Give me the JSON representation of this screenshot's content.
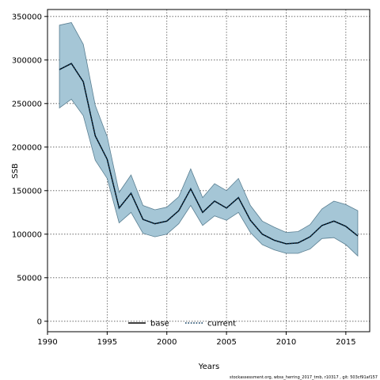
{
  "chart_data": {
    "type": "line",
    "title": "",
    "xlabel": "Years",
    "ylabel": "SSB",
    "xlim": [
      1990,
      2017
    ],
    "ylim": [
      -12000,
      358000
    ],
    "x_ticks": [
      1990,
      1995,
      2000,
      2005,
      2010,
      2015
    ],
    "y_ticks": [
      0,
      50000,
      100000,
      150000,
      200000,
      250000,
      300000,
      350000
    ],
    "grid": true,
    "legend_placement": "bottom-center",
    "x": [
      1991,
      1992,
      1993,
      1994,
      1995,
      1996,
      1997,
      1998,
      1999,
      2000,
      2001,
      2002,
      2003,
      2004,
      2005,
      2006,
      2007,
      2008,
      2009,
      2010,
      2011,
      2012,
      2013,
      2014,
      2015,
      2016
    ],
    "series": [
      {
        "name": "base",
        "style": "solid",
        "color": "#000000",
        "values": [
          289000,
          296000,
          275000,
          213000,
          186000,
          130000,
          147000,
          117000,
          112000,
          115000,
          127000,
          152000,
          125000,
          138000,
          130000,
          142000,
          116000,
          100000,
          93000,
          89000,
          90000,
          97000,
          110000,
          115000,
          109000,
          98000
        ]
      },
      {
        "name": "current",
        "style": "dotted",
        "color": "#0b3a5e",
        "values": [
          289000,
          296000,
          275000,
          213000,
          186000,
          130000,
          147000,
          117000,
          112000,
          115000,
          127000,
          152000,
          125000,
          138000,
          130000,
          142000,
          116000,
          100000,
          93000,
          89000,
          90000,
          97000,
          110000,
          115000,
          109000,
          98000
        ]
      }
    ],
    "band": {
      "color": "#a5c6d6",
      "edge_color": "#5a7f92",
      "lower": [
        245000,
        255000,
        236000,
        185000,
        164000,
        113000,
        125000,
        101000,
        97000,
        100000,
        112000,
        133000,
        110000,
        121000,
        116000,
        125000,
        102000,
        88000,
        82000,
        78000,
        78000,
        83000,
        95000,
        96000,
        88000,
        75000
      ],
      "upper": [
        340000,
        343000,
        318000,
        248000,
        212000,
        148000,
        168000,
        133000,
        128000,
        131000,
        143000,
        175000,
        142000,
        158000,
        150000,
        164000,
        133000,
        115000,
        108000,
        102000,
        103000,
        111000,
        129000,
        138000,
        134000,
        127000
      ]
    }
  },
  "footer": "stockassessment.org,  wbss_herring_2017_tmb,  r10317 ,  git: 503cf91af157"
}
